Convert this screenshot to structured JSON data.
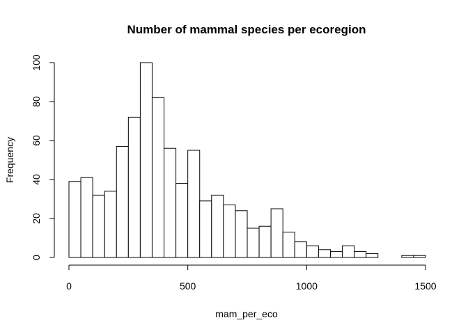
{
  "chart_data": {
    "type": "bar",
    "title": "Number of mammal species per ecoregion",
    "xlabel": "mam_per_eco",
    "ylabel": "Frequency",
    "bin_width": 50,
    "xlim": [
      0,
      1500
    ],
    "ylim": [
      0,
      100
    ],
    "x_ticks": [
      0,
      500,
      1000,
      1500
    ],
    "y_ticks": [
      0,
      20,
      40,
      60,
      80,
      100
    ],
    "bins": [
      {
        "start": 0,
        "end": 50,
        "count": 39
      },
      {
        "start": 50,
        "end": 100,
        "count": 41
      },
      {
        "start": 100,
        "end": 150,
        "count": 32
      },
      {
        "start": 150,
        "end": 200,
        "count": 34
      },
      {
        "start": 200,
        "end": 250,
        "count": 57
      },
      {
        "start": 250,
        "end": 300,
        "count": 72
      },
      {
        "start": 300,
        "end": 350,
        "count": 100
      },
      {
        "start": 350,
        "end": 400,
        "count": 82
      },
      {
        "start": 400,
        "end": 450,
        "count": 56
      },
      {
        "start": 450,
        "end": 500,
        "count": 38
      },
      {
        "start": 500,
        "end": 550,
        "count": 55
      },
      {
        "start": 550,
        "end": 600,
        "count": 29
      },
      {
        "start": 600,
        "end": 650,
        "count": 32
      },
      {
        "start": 650,
        "end": 700,
        "count": 27
      },
      {
        "start": 700,
        "end": 750,
        "count": 24
      },
      {
        "start": 750,
        "end": 800,
        "count": 15
      },
      {
        "start": 800,
        "end": 850,
        "count": 16
      },
      {
        "start": 850,
        "end": 900,
        "count": 25
      },
      {
        "start": 900,
        "end": 950,
        "count": 13
      },
      {
        "start": 950,
        "end": 1000,
        "count": 8
      },
      {
        "start": 1000,
        "end": 1050,
        "count": 6
      },
      {
        "start": 1050,
        "end": 1100,
        "count": 4
      },
      {
        "start": 1100,
        "end": 1150,
        "count": 3
      },
      {
        "start": 1150,
        "end": 1200,
        "count": 6
      },
      {
        "start": 1200,
        "end": 1250,
        "count": 3
      },
      {
        "start": 1250,
        "end": 1300,
        "count": 2
      },
      {
        "start": 1300,
        "end": 1350,
        "count": 0
      },
      {
        "start": 1350,
        "end": 1400,
        "count": 0
      },
      {
        "start": 1400,
        "end": 1450,
        "count": 1
      },
      {
        "start": 1450,
        "end": 1500,
        "count": 1
      }
    ],
    "grid": false,
    "legend": "none",
    "colors": {
      "bar_fill": "#ffffff",
      "bar_stroke": "#000000"
    }
  }
}
